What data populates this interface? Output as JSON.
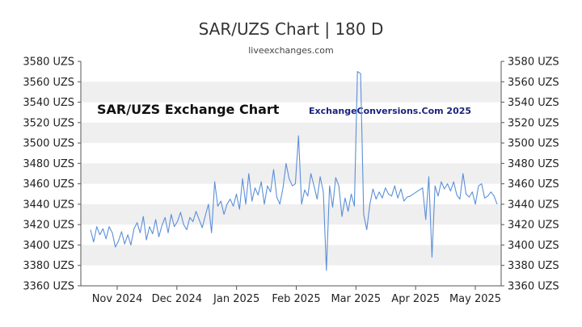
{
  "header": {
    "title": "SAR/UZS Chart | 180 D",
    "subtitle": "liveexchanges.com"
  },
  "chart_data": {
    "type": "line",
    "title": "SAR/UZS Exchange Chart",
    "watermark": "ExchangeConversions.Com 2025",
    "y_ticks": [
      "3580 UZS",
      "3560 UZS",
      "3540 UZS",
      "3520 UZS",
      "3500 UZS",
      "3480 UZS",
      "3460 UZS",
      "3440 UZS",
      "3420 UZS",
      "3400 UZS",
      "3380 UZS",
      "3360 UZS"
    ],
    "x_ticks": [
      "Nov 2024",
      "Dec 2024",
      "Jan 2025",
      "Feb 2025",
      "Mar 2025",
      "Apr 2025",
      "May 2025"
    ],
    "ylim": [
      3360,
      3580
    ],
    "line_color": "#5b8fd9",
    "band_color": "#efefef",
    "series": [
      {
        "values": [
          3415,
          3403,
          3418,
          3410,
          3416,
          3406,
          3418,
          3412,
          3398,
          3404,
          3413,
          3401,
          3410,
          3400,
          3416,
          3422,
          3412,
          3428,
          3405,
          3418,
          3411,
          3425,
          3408,
          3419,
          3427,
          3412,
          3430,
          3418,
          3423,
          3432,
          3420,
          3415,
          3427,
          3423,
          3433,
          3425,
          3417,
          3429,
          3440,
          3412,
          3462,
          3438,
          3443,
          3430,
          3440,
          3445,
          3438,
          3450,
          3435,
          3465,
          3440,
          3470,
          3443,
          3456,
          3449,
          3462,
          3440,
          3458,
          3452,
          3474,
          3447,
          3440,
          3456,
          3480,
          3465,
          3458,
          3460,
          3507,
          3440,
          3454,
          3448,
          3470,
          3458,
          3445,
          3467,
          3452,
          3375,
          3458,
          3437,
          3466,
          3458,
          3428,
          3446,
          3433,
          3450,
          3438,
          3570,
          3568,
          3430,
          3415,
          3440,
          3455,
          3445,
          3452,
          3446,
          3456,
          3450,
          3448,
          3458,
          3446,
          3455,
          3443,
          3447,
          3448,
          3450,
          3452,
          3454,
          3456,
          3425,
          3467,
          3388,
          3458,
          3448,
          3462,
          3455,
          3460,
          3453,
          3462,
          3449,
          3445,
          3470,
          3450,
          3447,
          3452,
          3440,
          3458,
          3460,
          3446,
          3448,
          3452,
          3448,
          3440
        ]
      }
    ]
  }
}
